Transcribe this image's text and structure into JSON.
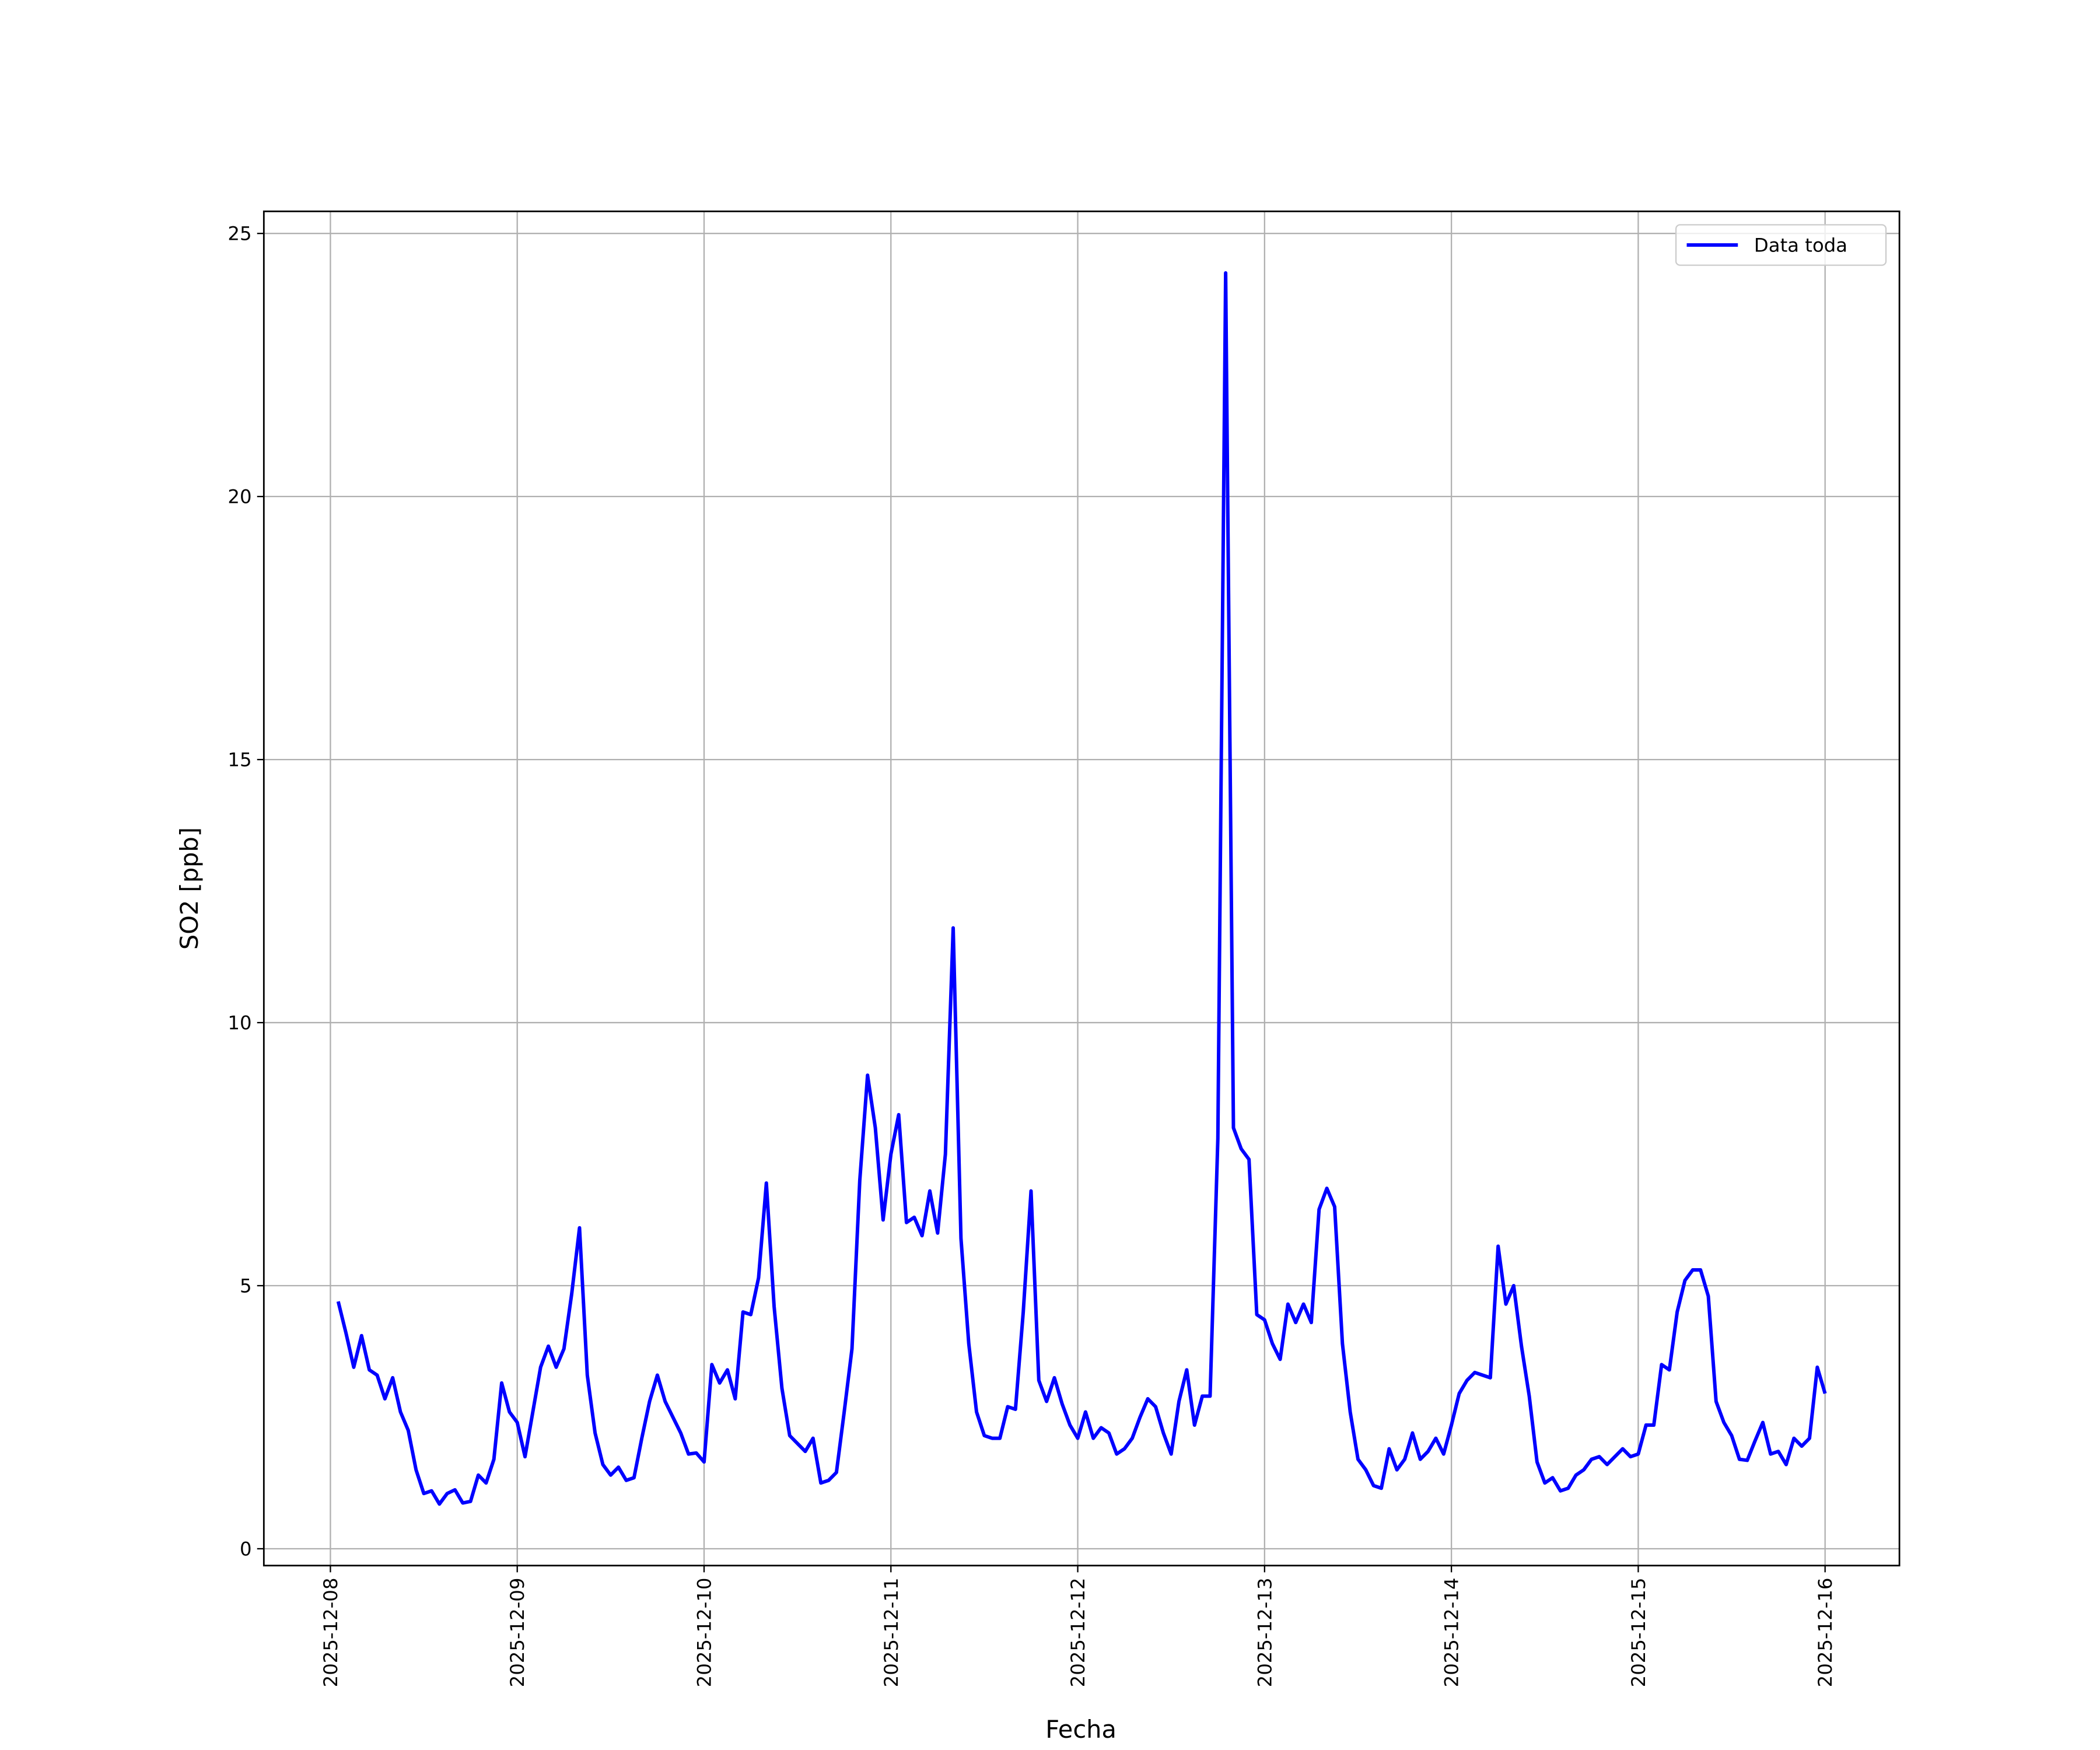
{
  "chart_data": {
    "type": "line",
    "xlabel": "Fecha",
    "ylabel": "SO2 [ppb]",
    "x": [
      "2025-12-08T01:00",
      "2025-12-08T02:00",
      "2025-12-08T03:00",
      "2025-12-08T04:00",
      "2025-12-08T05:00",
      "2025-12-08T06:00",
      "2025-12-08T07:00",
      "2025-12-08T08:00",
      "2025-12-08T09:00",
      "2025-12-08T10:00",
      "2025-12-08T11:00",
      "2025-12-08T12:00",
      "2025-12-08T13:00",
      "2025-12-08T14:00",
      "2025-12-08T15:00",
      "2025-12-08T16:00",
      "2025-12-08T17:00",
      "2025-12-08T18:00",
      "2025-12-08T19:00",
      "2025-12-08T20:00",
      "2025-12-08T21:00",
      "2025-12-08T22:00",
      "2025-12-08T23:00",
      "2025-12-09T00:00",
      "2025-12-09T01:00",
      "2025-12-09T02:00",
      "2025-12-09T03:00",
      "2025-12-09T04:00",
      "2025-12-09T05:00",
      "2025-12-09T06:00",
      "2025-12-09T07:00",
      "2025-12-09T08:00",
      "2025-12-09T09:00",
      "2025-12-09T10:00",
      "2025-12-09T11:00",
      "2025-12-09T12:00",
      "2025-12-09T13:00",
      "2025-12-09T14:00",
      "2025-12-09T15:00",
      "2025-12-09T16:00",
      "2025-12-09T17:00",
      "2025-12-09T18:00",
      "2025-12-09T19:00",
      "2025-12-09T20:00",
      "2025-12-09T21:00",
      "2025-12-09T22:00",
      "2025-12-09T23:00",
      "2025-12-10T00:00",
      "2025-12-10T01:00",
      "2025-12-10T02:00",
      "2025-12-10T03:00",
      "2025-12-10T04:00",
      "2025-12-10T05:00",
      "2025-12-10T06:00",
      "2025-12-10T07:00",
      "2025-12-10T08:00",
      "2025-12-10T09:00",
      "2025-12-10T10:00",
      "2025-12-10T11:00",
      "2025-12-10T12:00",
      "2025-12-10T13:00",
      "2025-12-10T14:00",
      "2025-12-10T15:00",
      "2025-12-10T16:00",
      "2025-12-10T17:00",
      "2025-12-10T18:00",
      "2025-12-10T19:00",
      "2025-12-10T20:00",
      "2025-12-10T21:00",
      "2025-12-10T22:00",
      "2025-12-10T23:00",
      "2025-12-11T00:00",
      "2025-12-11T01:00",
      "2025-12-11T02:00",
      "2025-12-11T03:00",
      "2025-12-11T04:00",
      "2025-12-11T05:00",
      "2025-12-11T06:00",
      "2025-12-11T07:00",
      "2025-12-11T08:00",
      "2025-12-11T09:00",
      "2025-12-11T10:00",
      "2025-12-11T11:00",
      "2025-12-11T12:00",
      "2025-12-11T13:00",
      "2025-12-11T14:00",
      "2025-12-11T15:00",
      "2025-12-11T16:00",
      "2025-12-11T17:00",
      "2025-12-11T18:00",
      "2025-12-11T19:00",
      "2025-12-11T20:00",
      "2025-12-11T21:00",
      "2025-12-11T22:00",
      "2025-12-11T23:00",
      "2025-12-12T00:00",
      "2025-12-12T01:00",
      "2025-12-12T02:00",
      "2025-12-12T03:00",
      "2025-12-12T04:00",
      "2025-12-12T05:00",
      "2025-12-12T06:00",
      "2025-12-12T07:00",
      "2025-12-12T08:00",
      "2025-12-12T09:00",
      "2025-12-12T10:00",
      "2025-12-12T11:00",
      "2025-12-12T12:00",
      "2025-12-12T13:00",
      "2025-12-12T14:00",
      "2025-12-12T15:00",
      "2025-12-12T16:00",
      "2025-12-12T17:00",
      "2025-12-12T18:00",
      "2025-12-12T19:00",
      "2025-12-12T20:00",
      "2025-12-12T21:00",
      "2025-12-12T22:00",
      "2025-12-12T23:00",
      "2025-12-13T00:00",
      "2025-12-13T01:00",
      "2025-12-13T02:00",
      "2025-12-13T03:00",
      "2025-12-13T04:00",
      "2025-12-13T05:00",
      "2025-12-13T06:00",
      "2025-12-13T07:00",
      "2025-12-13T08:00",
      "2025-12-13T09:00",
      "2025-12-13T10:00",
      "2025-12-13T11:00",
      "2025-12-13T12:00",
      "2025-12-13T13:00",
      "2025-12-13T14:00",
      "2025-12-13T15:00",
      "2025-12-13T16:00",
      "2025-12-13T17:00",
      "2025-12-13T18:00",
      "2025-12-13T19:00",
      "2025-12-13T20:00",
      "2025-12-13T21:00",
      "2025-12-13T22:00",
      "2025-12-13T23:00",
      "2025-12-14T00:00",
      "2025-12-14T01:00",
      "2025-12-14T02:00",
      "2025-12-14T03:00",
      "2025-12-14T04:00",
      "2025-12-14T05:00",
      "2025-12-14T06:00",
      "2025-12-14T07:00",
      "2025-12-14T08:00",
      "2025-12-14T09:00",
      "2025-12-14T10:00",
      "2025-12-14T11:00",
      "2025-12-14T12:00",
      "2025-12-14T13:00",
      "2025-12-14T14:00",
      "2025-12-14T15:00",
      "2025-12-14T16:00",
      "2025-12-14T17:00",
      "2025-12-14T18:00",
      "2025-12-14T19:00",
      "2025-12-14T20:00",
      "2025-12-14T21:00",
      "2025-12-14T22:00",
      "2025-12-14T23:00",
      "2025-12-15T00:00",
      "2025-12-15T01:00",
      "2025-12-15T02:00",
      "2025-12-15T03:00",
      "2025-12-15T04:00",
      "2025-12-15T05:00",
      "2025-12-15T06:00",
      "2025-12-15T07:00",
      "2025-12-15T08:00",
      "2025-12-15T09:00",
      "2025-12-15T10:00",
      "2025-12-15T11:00",
      "2025-12-15T12:00",
      "2025-12-15T13:00",
      "2025-12-15T14:00",
      "2025-12-15T15:00",
      "2025-12-15T16:00",
      "2025-12-15T17:00",
      "2025-12-15T18:00",
      "2025-12-15T19:00",
      "2025-12-15T20:00",
      "2025-12-15T21:00",
      "2025-12-15T22:00",
      "2025-12-15T23:00",
      "2025-12-16T00:00"
    ],
    "series": [
      {
        "name": "Data toda",
        "color": "#0000ff",
        "values": [
          4.7,
          4.1,
          3.45,
          4.05,
          3.4,
          3.3,
          2.85,
          3.25,
          2.6,
          2.25,
          1.5,
          1.05,
          1.1,
          0.85,
          1.05,
          1.12,
          0.87,
          0.9,
          1.4,
          1.25,
          1.7,
          3.15,
          2.6,
          2.4,
          1.75,
          2.6,
          3.45,
          3.85,
          3.45,
          3.8,
          4.85,
          6.1,
          3.3,
          2.2,
          1.6,
          1.4,
          1.55,
          1.3,
          1.35,
          2.1,
          2.8,
          3.3,
          2.8,
          2.5,
          2.2,
          1.8,
          1.82,
          1.65,
          3.5,
          3.15,
          3.4,
          2.85,
          4.5,
          4.45,
          5.15,
          6.95,
          4.6,
          3.05,
          2.15,
          2.0,
          1.85,
          2.1,
          1.25,
          1.3,
          1.45,
          2.6,
          3.8,
          7.0,
          9.0,
          8.0,
          6.25,
          7.5,
          8.25,
          6.2,
          6.3,
          5.95,
          6.8,
          6.0,
          7.5,
          11.8,
          5.9,
          3.9,
          2.6,
          2.15,
          2.1,
          2.1,
          2.7,
          2.65,
          4.5,
          6.8,
          3.2,
          2.8,
          3.25,
          2.75,
          2.35,
          2.1,
          2.6,
          2.1,
          2.3,
          2.2,
          1.8,
          1.9,
          2.1,
          2.5,
          2.85,
          2.7,
          2.2,
          1.8,
          2.8,
          3.4,
          2.35,
          2.9,
          2.9,
          7.8,
          24.25,
          8.0,
          7.6,
          7.4,
          4.45,
          4.35,
          3.9,
          3.6,
          4.65,
          4.3,
          4.65,
          4.3,
          6.45,
          6.85,
          6.5,
          3.9,
          2.6,
          1.7,
          1.5,
          1.2,
          1.15,
          1.9,
          1.5,
          1.7,
          2.2,
          1.7,
          1.85,
          2.1,
          1.8,
          2.35,
          2.95,
          3.2,
          3.35,
          3.3,
          3.25,
          5.75,
          4.65,
          5.0,
          3.85,
          2.9,
          1.65,
          1.25,
          1.35,
          1.1,
          1.15,
          1.4,
          1.5,
          1.7,
          1.75,
          1.6,
          1.75,
          1.9,
          1.75,
          1.8,
          2.35,
          2.35,
          3.5,
          3.4,
          4.5,
          5.1,
          5.3,
          5.3,
          4.8,
          2.8,
          2.4,
          2.15,
          1.7,
          1.68,
          2.05,
          2.4,
          1.8,
          1.85,
          1.6,
          2.1,
          1.95,
          2.1,
          3.45,
          2.95
        ]
      }
    ],
    "xlim": [
      "2025-12-07T15:27",
      "2025-12-16T09:33"
    ],
    "xticks": [
      "2025-12-08",
      "2025-12-09",
      "2025-12-10",
      "2025-12-11",
      "2025-12-12",
      "2025-12-13",
      "2025-12-14",
      "2025-12-15",
      "2025-12-16"
    ],
    "ylim": [
      -0.32,
      25.42
    ],
    "yticks": [
      0,
      5,
      10,
      15,
      20,
      25
    ],
    "grid": true,
    "legend": "upper right"
  }
}
